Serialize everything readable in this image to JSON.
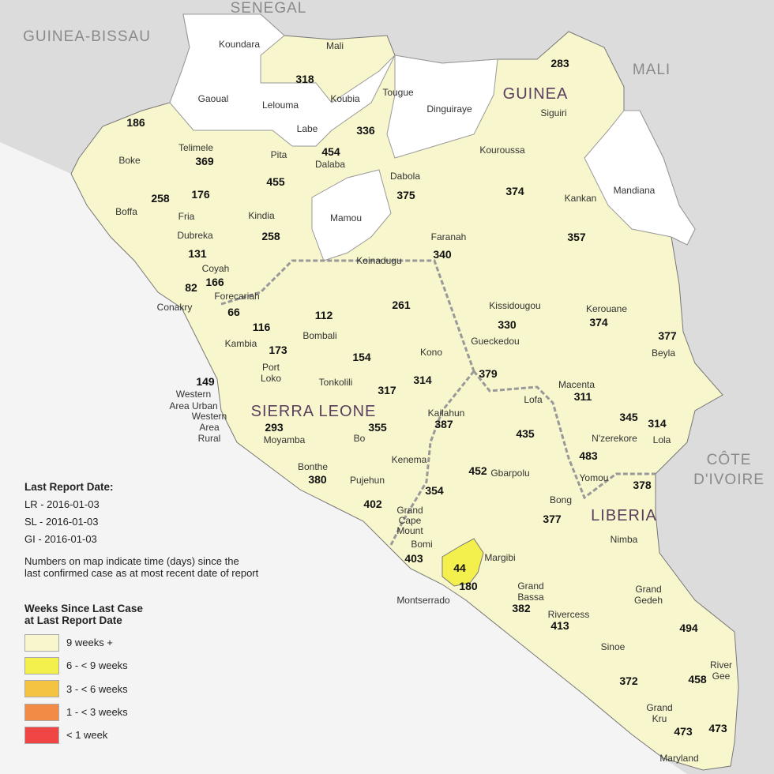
{
  "neighbors": [
    "SENEGAL",
    "GUINEA-BISSAU",
    "MALI",
    "CÔTE",
    "D'IVOIRE"
  ],
  "countries": [
    "GUINEA",
    "SIERRA LEONE",
    "LIBERIA"
  ],
  "colors": {
    "9w": "#f8f6cc",
    "6w": "#f3f04e",
    "3w": "#f5c342",
    "1w": "#f28b45",
    "lt1": "#f04545",
    "no_data": "#ffffff",
    "other": "#dcdcdc",
    "ocean": "#f4f4f4"
  },
  "districts": [
    {
      "name": "Koundara"
    },
    {
      "name": "Mali",
      "days": "318"
    },
    {
      "name": "Gaoual"
    },
    {
      "name": "Lelouma"
    },
    {
      "name": "Labe"
    },
    {
      "name": "Koubia"
    },
    {
      "name": "Tougue",
      "days": "336"
    },
    {
      "name": "Dinguiraye"
    },
    {
      "name": "Siguiri",
      "days": "283"
    },
    {
      "name": "Boke",
      "days": "186"
    },
    {
      "name": "Telimele",
      "days": "369"
    },
    {
      "name": "Pita",
      "days": "455"
    },
    {
      "name": "Dalaba",
      "days": "454"
    },
    {
      "name": "Dabola",
      "days": "375"
    },
    {
      "name": "Kouroussa",
      "days": "374"
    },
    {
      "name": "Mandiana"
    },
    {
      "name": "Kankan",
      "days": "357"
    },
    {
      "name": "Boffa",
      "days": "258"
    },
    {
      "name": "Fria",
      "days": "176"
    },
    {
      "name": "Kindia",
      "days": "258"
    },
    {
      "name": "Mamou"
    },
    {
      "name": "Faranah",
      "days": "340"
    },
    {
      "name": "Dubreka",
      "days": "131"
    },
    {
      "name": "Coyah",
      "days": "166"
    },
    {
      "name": "Conakry",
      "days": "82"
    },
    {
      "name": "Forecariah",
      "days": "66"
    },
    {
      "name": "Koinadugu",
      "days": "261"
    },
    {
      "name": "Kissidougou",
      "days": "330"
    },
    {
      "name": "Kerouane",
      "days": "374"
    },
    {
      "name": "Beyla",
      "days": "377"
    },
    {
      "name": "Kambia",
      "days": "116"
    },
    {
      "name": "Bombali",
      "days": "112"
    },
    {
      "name": "Port Loko",
      "days": "173"
    },
    {
      "name": "Tonkolili",
      "days": "154"
    },
    {
      "name": "Kono",
      "days": "314"
    },
    {
      "name": "Gueckedou",
      "days": "379"
    },
    {
      "name": "Macenta",
      "days": "311"
    },
    {
      "name": "Western Area Urban",
      "days": "149"
    },
    {
      "name": "Western Area Rural"
    },
    {
      "name": "Kailahun",
      "days": "387"
    },
    {
      "name": "Lofa",
      "days": "435"
    },
    {
      "name": "N'zerekore",
      "days": "345"
    },
    {
      "name": "Lola",
      "days": "314"
    },
    {
      "name": "Yomou",
      "days": "483"
    },
    {
      "name": "Moyamba",
      "days": "293"
    },
    {
      "name": "Bo",
      "days": "355"
    },
    {
      "name": "Kenema",
      "days": "317"
    },
    {
      "name": "Gbarpolu",
      "days": "452"
    },
    {
      "name": "Bonthe",
      "days": "380"
    },
    {
      "name": "Pujehun",
      "days": "402"
    },
    {
      "name": "Grand Cape Mount",
      "days": "354"
    },
    {
      "name": "Nimba",
      "days": "378"
    },
    {
      "name": "Bong",
      "days": "377"
    },
    {
      "name": "Bomi",
      "days": "403"
    },
    {
      "name": "Montserrado",
      "days": "44"
    },
    {
      "name": "Margibi",
      "days": "180"
    },
    {
      "name": "Grand Bassa",
      "days": "382"
    },
    {
      "name": "Grand Gedeh",
      "days": "494"
    },
    {
      "name": "Rivercess",
      "days": "413"
    },
    {
      "name": "Sinoe",
      "days": "372"
    },
    {
      "name": "River Gee",
      "days": "458"
    },
    {
      "name": "Grand Kru",
      "days": "473"
    },
    {
      "name": "Maryland",
      "days": "473"
    }
  ],
  "legend": {
    "report_title": "Last Report Date:",
    "reports": [
      "LR - 2016-01-03",
      "SL - 2016-01-03",
      "GI - 2016-01-03"
    ],
    "note_line1": "Numbers on map indicate time (days) since the",
    "note_line2": "last confirmed case as at most recent date of report",
    "title_line1": "Weeks Since Last Case",
    "title_line2": "at Last Report Date",
    "items": [
      {
        "label": "9 weeks +",
        "color": "#f8f6cc"
      },
      {
        "label": "6 - < 9 weeks",
        "color": "#f3f04e"
      },
      {
        "label": "3 - < 6 weeks",
        "color": "#f5c342"
      },
      {
        "label": "1 - < 3 weeks",
        "color": "#f28b45"
      },
      {
        "label": "< 1 week",
        "color": "#f04545"
      }
    ]
  }
}
